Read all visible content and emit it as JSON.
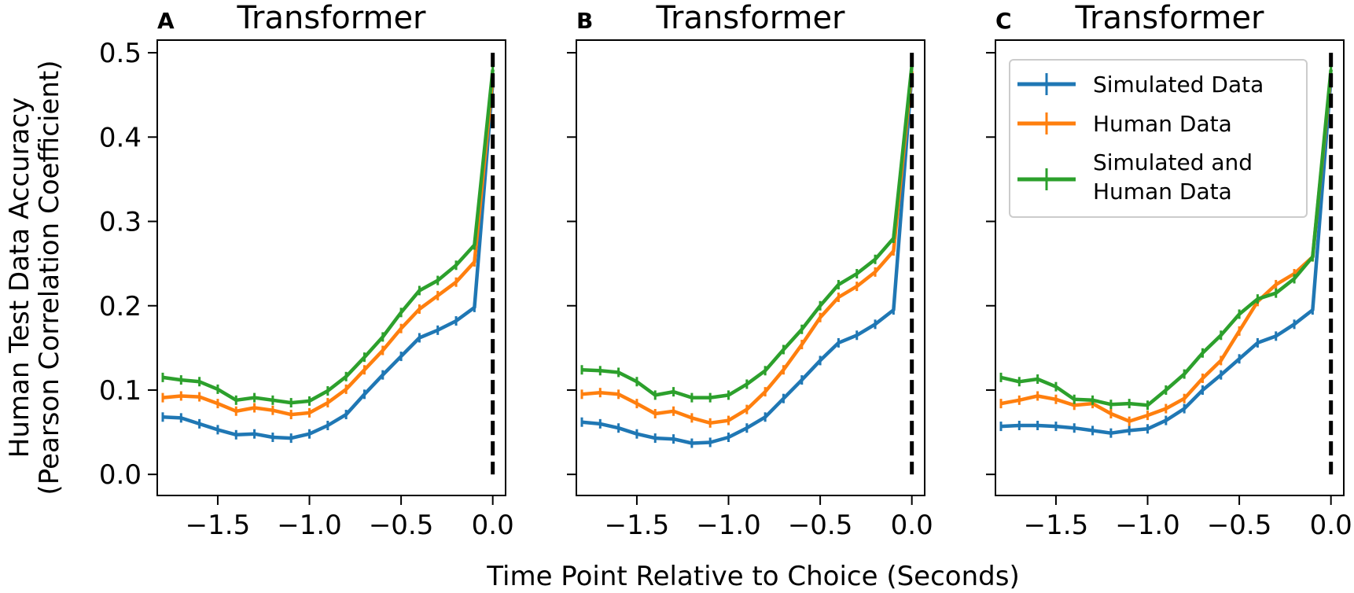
{
  "figure": {
    "xlabel": "Time Point Relative to Choice (Seconds)",
    "ylabel_line1": "Human Test Data Accuracy",
    "ylabel_line2": "(Pearson Correlation Coefficient)"
  },
  "legend": {
    "entries": [
      "Simulated Data",
      "Human Data",
      "Simulated and",
      "Human Data"
    ]
  },
  "colors": {
    "simulated": "#1f77b4",
    "human": "#ff7f0e",
    "combined": "#2ca02c",
    "choice_line": "#000000"
  },
  "chart_data": [
    {
      "type": "line",
      "panel_letter": "A",
      "title": "Transformer",
      "xlim": [
        -1.83,
        0.07
      ],
      "ylim": [
        -0.025,
        0.515
      ],
      "xticks": [
        -1.5,
        -1.0,
        -0.5,
        0.0
      ],
      "xtick_labels": [
        "−1.5",
        "−1.0",
        "−0.5",
        "0.0"
      ],
      "yticks": [
        0.0,
        0.1,
        0.2,
        0.3,
        0.4,
        0.5
      ],
      "ytick_labels": [
        "0.0",
        "0.1",
        "0.2",
        "0.3",
        "0.4",
        "0.5"
      ],
      "vline_x": 0.0,
      "x": [
        -1.8,
        -1.7,
        -1.6,
        -1.5,
        -1.4,
        -1.3,
        -1.2,
        -1.1,
        -1.0,
        -0.9,
        -0.8,
        -0.7,
        -0.6,
        -0.5,
        -0.4,
        -0.3,
        -0.2,
        -0.1,
        0.0
      ],
      "series": [
        {
          "name": "Simulated Data",
          "values": [
            0.068,
            0.067,
            0.06,
            0.053,
            0.047,
            0.048,
            0.044,
            0.043,
            0.048,
            0.058,
            0.071,
            0.095,
            0.118,
            0.14,
            0.162,
            0.171,
            0.182,
            0.198,
            0.465
          ]
        },
        {
          "name": "Human Data",
          "values": [
            0.091,
            0.093,
            0.092,
            0.084,
            0.075,
            0.079,
            0.076,
            0.071,
            0.073,
            0.085,
            0.101,
            0.124,
            0.147,
            0.173,
            0.196,
            0.212,
            0.228,
            0.252,
            0.47
          ]
        },
        {
          "name": "Simulated and Human Data",
          "values": [
            0.115,
            0.112,
            0.11,
            0.101,
            0.088,
            0.091,
            0.088,
            0.085,
            0.087,
            0.099,
            0.116,
            0.139,
            0.163,
            0.192,
            0.218,
            0.23,
            0.248,
            0.272,
            0.48
          ]
        }
      ]
    },
    {
      "type": "line",
      "panel_letter": "B",
      "title": "Transformer",
      "xlim": [
        -1.83,
        0.07
      ],
      "ylim": [
        -0.025,
        0.515
      ],
      "xticks": [
        -1.5,
        -1.0,
        -0.5,
        0.0
      ],
      "xtick_labels": [
        "−1.5",
        "−1.0",
        "−0.5",
        "0.0"
      ],
      "yticks": [
        0.0,
        0.1,
        0.2,
        0.3,
        0.4,
        0.5
      ],
      "ytick_labels": [
        "",
        "",
        "",
        "",
        "",
        ""
      ],
      "vline_x": 0.0,
      "x": [
        -1.8,
        -1.7,
        -1.6,
        -1.5,
        -1.4,
        -1.3,
        -1.2,
        -1.1,
        -1.0,
        -0.9,
        -0.8,
        -0.7,
        -0.6,
        -0.5,
        -0.4,
        -0.3,
        -0.2,
        -0.1,
        0.0
      ],
      "series": [
        {
          "name": "Simulated Data",
          "values": [
            0.062,
            0.06,
            0.055,
            0.048,
            0.043,
            0.042,
            0.037,
            0.038,
            0.044,
            0.055,
            0.068,
            0.09,
            0.112,
            0.135,
            0.156,
            0.165,
            0.178,
            0.195,
            0.475
          ]
        },
        {
          "name": "Human Data",
          "values": [
            0.095,
            0.097,
            0.095,
            0.084,
            0.072,
            0.075,
            0.067,
            0.061,
            0.064,
            0.077,
            0.098,
            0.124,
            0.154,
            0.186,
            0.21,
            0.223,
            0.24,
            0.265,
            0.478
          ]
        },
        {
          "name": "Simulated and Human Data",
          "values": [
            0.124,
            0.123,
            0.121,
            0.11,
            0.094,
            0.098,
            0.091,
            0.091,
            0.094,
            0.107,
            0.123,
            0.148,
            0.172,
            0.2,
            0.225,
            0.238,
            0.255,
            0.28,
            0.485
          ]
        }
      ]
    },
    {
      "type": "line",
      "panel_letter": "C",
      "title": "Transformer",
      "xlim": [
        -1.83,
        0.07
      ],
      "ylim": [
        -0.025,
        0.515
      ],
      "xticks": [
        -1.5,
        -1.0,
        -0.5,
        0.0
      ],
      "xtick_labels": [
        "−1.5",
        "−1.0",
        "−0.5",
        "0.0"
      ],
      "yticks": [
        0.0,
        0.1,
        0.2,
        0.3,
        0.4,
        0.5
      ],
      "ytick_labels": [
        "",
        "",
        "",
        "",
        "",
        ""
      ],
      "vline_x": 0.0,
      "legend": "top-right",
      "x": [
        -1.8,
        -1.7,
        -1.6,
        -1.5,
        -1.4,
        -1.3,
        -1.2,
        -1.1,
        -1.0,
        -0.9,
        -0.8,
        -0.7,
        -0.6,
        -0.5,
        -0.4,
        -0.3,
        -0.2,
        -0.1,
        0.0
      ],
      "series": [
        {
          "name": "Simulated Data",
          "values": [
            0.057,
            0.058,
            0.058,
            0.057,
            0.055,
            0.052,
            0.049,
            0.052,
            0.054,
            0.064,
            0.078,
            0.1,
            0.118,
            0.137,
            0.156,
            0.164,
            0.178,
            0.195,
            0.47
          ]
        },
        {
          "name": "Human Data",
          "values": [
            0.084,
            0.088,
            0.093,
            0.089,
            0.082,
            0.084,
            0.072,
            0.063,
            0.07,
            0.078,
            0.09,
            0.114,
            0.135,
            0.17,
            0.205,
            0.225,
            0.238,
            0.258,
            0.475
          ]
        },
        {
          "name": "Simulated and Human Data",
          "values": [
            0.115,
            0.11,
            0.113,
            0.104,
            0.089,
            0.088,
            0.083,
            0.084,
            0.082,
            0.1,
            0.119,
            0.144,
            0.165,
            0.19,
            0.208,
            0.215,
            0.232,
            0.258,
            0.48
          ]
        }
      ]
    }
  ]
}
